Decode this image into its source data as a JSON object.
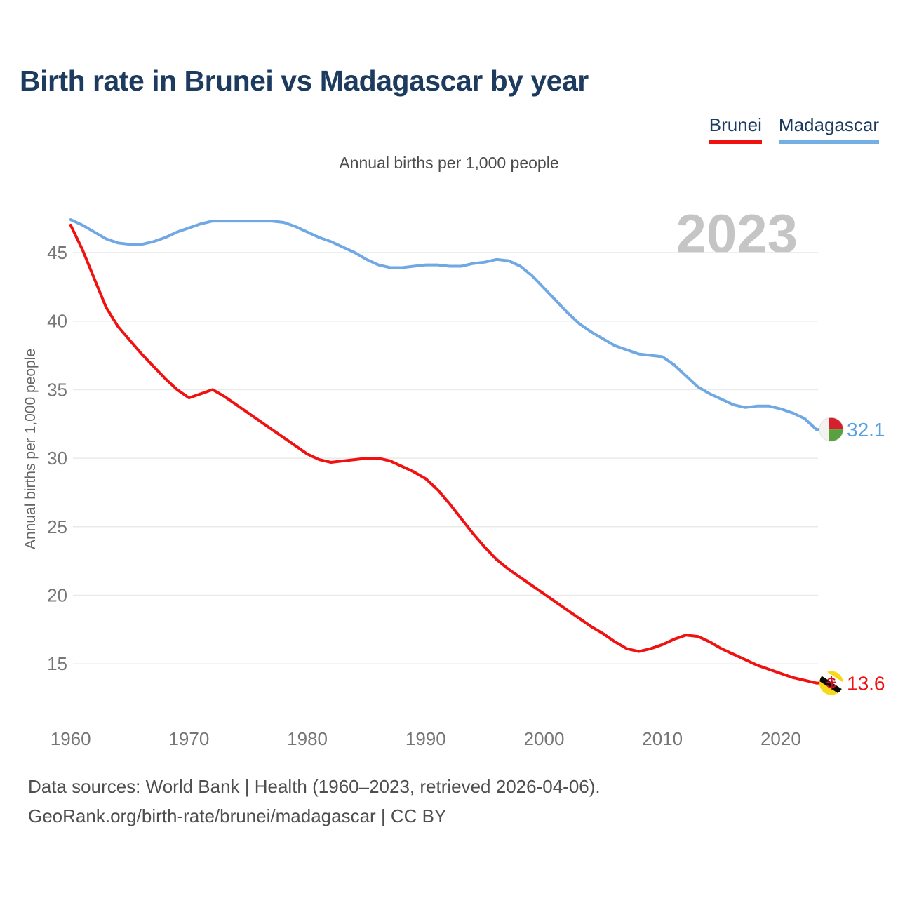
{
  "header": {
    "title": "Birth rate in Brunei vs Madagascar by year"
  },
  "legend": {
    "items": [
      {
        "label": "Brunei",
        "color": "#f01111"
      },
      {
        "label": "Madagascar",
        "color": "#74afe3"
      }
    ]
  },
  "subtitle": "Annual births per 1,000 people",
  "watermark": "2023",
  "y_axis_title": "Annual births per 1,000 people",
  "footer": {
    "line1": "Data sources: World Bank | Health (1960–2023, retrieved 2026-04-06).",
    "line2": "GeoRank.org/birth-rate/brunei/madagascar | CC BY"
  },
  "colors": {
    "title_navy": "#1d3a5f",
    "brunei_red": "#f01111",
    "madagascar_blue": "#6fa8e4",
    "gridline": "#e9e9e9",
    "tick_text": "#767676",
    "watermark_gray": "#c5c5c5"
  },
  "chart_data": {
    "type": "line",
    "title": "Birth rate in Brunei vs Madagascar by year",
    "ylabel": "Annual births per 1,000 people",
    "grid": "horizontal-only",
    "legend_position": "top-right",
    "xlim": [
      1960,
      2023
    ],
    "ylim": [
      12.5,
      48.5
    ],
    "x_ticks": [
      1960,
      1970,
      1980,
      1990,
      2000,
      2010,
      2020
    ],
    "y_ticks": [
      15,
      20,
      25,
      30,
      35,
      40,
      45
    ],
    "years": [
      1960,
      1961,
      1962,
      1963,
      1964,
      1965,
      1966,
      1967,
      1968,
      1969,
      1970,
      1971,
      1972,
      1973,
      1974,
      1975,
      1976,
      1977,
      1978,
      1979,
      1980,
      1981,
      1982,
      1983,
      1984,
      1985,
      1986,
      1987,
      1988,
      1989,
      1990,
      1991,
      1992,
      1993,
      1994,
      1995,
      1996,
      1997,
      1998,
      1999,
      2000,
      2001,
      2002,
      2003,
      2004,
      2005,
      2006,
      2007,
      2008,
      2009,
      2010,
      2011,
      2012,
      2013,
      2014,
      2015,
      2016,
      2017,
      2018,
      2019,
      2020,
      2021,
      2022,
      2023
    ],
    "series": [
      {
        "name": "Brunei",
        "color": "#f01111",
        "end_label": "13.6",
        "end_year": 2023,
        "values": [
          47.0,
          45.2,
          43.1,
          41.0,
          39.6,
          38.6,
          37.6,
          36.7,
          35.8,
          35.0,
          34.4,
          34.7,
          35.0,
          34.5,
          33.9,
          33.3,
          32.7,
          32.1,
          31.5,
          30.9,
          30.3,
          29.9,
          29.7,
          29.8,
          29.9,
          30.0,
          30.0,
          29.8,
          29.4,
          29.0,
          28.5,
          27.7,
          26.7,
          25.6,
          24.5,
          23.5,
          22.6,
          21.9,
          21.3,
          20.7,
          20.1,
          19.5,
          18.9,
          18.3,
          17.7,
          17.2,
          16.6,
          16.1,
          15.9,
          16.1,
          16.4,
          16.8,
          17.1,
          17.0,
          16.6,
          16.1,
          15.7,
          15.3,
          14.9,
          14.6,
          14.3,
          14.0,
          13.8,
          13.6
        ]
      },
      {
        "name": "Madagascar",
        "color": "#6fa8e4",
        "end_label": "32.1",
        "end_year": 2023,
        "values": [
          47.4,
          47.0,
          46.5,
          46.0,
          45.7,
          45.6,
          45.6,
          45.8,
          46.1,
          46.5,
          46.8,
          47.1,
          47.3,
          47.3,
          47.3,
          47.3,
          47.3,
          47.3,
          47.2,
          46.9,
          46.5,
          46.1,
          45.8,
          45.4,
          45.0,
          44.5,
          44.1,
          43.9,
          43.9,
          44.0,
          44.1,
          44.1,
          44.0,
          44.0,
          44.2,
          44.3,
          44.5,
          44.4,
          44.0,
          43.3,
          42.4,
          41.5,
          40.6,
          39.8,
          39.2,
          38.7,
          38.2,
          37.9,
          37.6,
          37.5,
          37.4,
          36.8,
          36.0,
          35.2,
          34.7,
          34.3,
          33.9,
          33.7,
          33.8,
          33.8,
          33.6,
          33.3,
          32.9,
          32.1
        ]
      }
    ]
  }
}
